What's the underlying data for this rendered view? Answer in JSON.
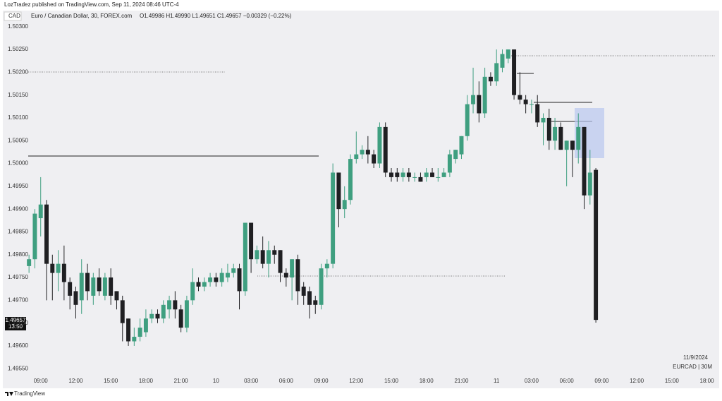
{
  "header": {
    "publisher": "LozTradez published on TradingView.com, Sep 11, 2024 08:46 UTC-4",
    "footer": "TradingView"
  },
  "chart_data": {
    "type": "candlestick",
    "currency": "CAD",
    "title": "Euro / Canadian Dollar, 30, FOREX.com",
    "ohlc_legend": "O1.49986 H1.49990 L1.49651 C1.49657 −0.00329 (−0.22%)",
    "last_time": "13:50",
    "date_label": "11/9/2024",
    "symbol_label": "EURCAD | 30M",
    "up_color": "#3f9f80",
    "down_color": "#1f1f22",
    "ylim": [
      1.49538,
      1.50312
    ],
    "yticks": [
      {
        "value": 1.4955,
        "label": "1.49550"
      },
      {
        "value": 1.496,
        "label": "1.49600"
      },
      {
        "value": 1.4965,
        "label": "1.49650"
      },
      {
        "value": 1.497,
        "label": "1.49700"
      },
      {
        "value": 1.4975,
        "label": "1.49750"
      },
      {
        "value": 1.498,
        "label": "1.49800"
      },
      {
        "value": 1.4985,
        "label": "1.49850"
      },
      {
        "value": 1.499,
        "label": "1.49900"
      },
      {
        "value": 1.4995,
        "label": "1.49950"
      },
      {
        "value": 1.5,
        "label": "1.50000"
      },
      {
        "value": 1.5005,
        "label": "1.50050"
      },
      {
        "value": 1.501,
        "label": "1.50100"
      },
      {
        "value": 1.5015,
        "label": "1.50150"
      },
      {
        "value": 1.502,
        "label": "1.50200"
      },
      {
        "value": 1.5025,
        "label": "1.50250"
      },
      {
        "value": 1.503,
        "label": "1.50300"
      }
    ],
    "grid": false,
    "categories": [
      null,
      null,
      "09:00",
      null,
      null,
      null,
      null,
      null,
      "12:00",
      null,
      null,
      null,
      null,
      null,
      "15:00",
      null,
      null,
      null,
      null,
      null,
      "18:00",
      null,
      null,
      null,
      null,
      null,
      "21:00",
      null,
      null,
      null,
      null,
      null,
      "10",
      null,
      null,
      null,
      null,
      null,
      "03:00",
      null,
      null,
      null,
      null,
      null,
      "06:00",
      null,
      null,
      null,
      null,
      null,
      "09:00",
      null,
      null,
      null,
      null,
      null,
      "12:00",
      null,
      null,
      null,
      null,
      null,
      "15:00",
      null,
      null,
      null,
      null,
      null,
      "18:00",
      null,
      null,
      null,
      null,
      null,
      "21:00",
      null,
      null,
      null,
      null,
      null,
      "11",
      null,
      null,
      null,
      null,
      null,
      "03:00",
      null,
      null,
      null,
      null,
      null,
      "06:00",
      null,
      null,
      null,
      null,
      null,
      "09:00",
      null,
      null,
      null,
      null,
      null,
      "12:00",
      null,
      null,
      null,
      null,
      null,
      "15:00",
      null,
      null,
      null,
      null,
      null,
      "18:00",
      null
    ],
    "open": [
      1.49775,
      1.4979,
      1.4988,
      1.4991,
      1.4978,
      1.4976,
      1.4978,
      1.4974,
      1.4972,
      1.497,
      1.4976,
      1.4971,
      1.4975,
      1.4971,
      1.4975,
      1.4972,
      1.497,
      1.4966,
      1.4961,
      1.4962,
      1.4963,
      1.4966,
      1.4967,
      1.4966,
      1.4968,
      1.497,
      1.4968,
      1.4964,
      1.497,
      1.4974,
      1.4973,
      1.4974,
      1.4975,
      1.4974,
      1.4975,
      1.4976,
      1.4977,
      1.4972,
      1.4987,
      1.4979,
      1.4981,
      1.4978,
      1.4981,
      1.4981,
      1.4976,
      1.4975,
      1.4979,
      1.4973,
      1.4972,
      1.497,
      1.4969,
      1.4977,
      1.4978,
      1.4998,
      1.499,
      1.4992,
      1.5001,
      1.5002,
      1.5003,
      1.5002,
      1.5,
      1.5008,
      1.4998,
      1.4998,
      1.4997,
      1.4998,
      1.4997,
      1.4997,
      1.4997,
      1.4998,
      1.4997,
      1.4997,
      1.4998,
      1.5001,
      1.5002,
      1.5006,
      1.5013,
      1.5015,
      1.5011,
      1.5019,
      1.5018,
      1.5021,
      1.5023,
      1.5025,
      1.5015,
      1.5014,
      1.5013,
      1.5013,
      1.5009,
      1.501,
      1.5005,
      1.5008,
      1.5003,
      1.5005,
      1.5003,
      1.5008,
      1.4993,
      1.49986,
      null,
      null,
      null,
      null,
      null,
      null,
      null,
      null,
      null,
      null,
      null,
      null,
      null,
      null,
      null,
      null,
      null,
      null,
      null,
      null
    ],
    "high": [
      1.498,
      1.499,
      1.4997,
      1.4992,
      1.498,
      1.4981,
      1.4982,
      1.4975,
      1.4973,
      1.4979,
      1.4978,
      1.4976,
      1.4977,
      1.4976,
      1.4977,
      1.4972,
      1.4971,
      1.4966,
      1.4964,
      1.4966,
      1.4968,
      1.4968,
      1.4968,
      1.497,
      1.4971,
      1.4972,
      1.4969,
      1.4971,
      1.4977,
      1.4975,
      1.4975,
      1.4976,
      1.4976,
      1.4977,
      1.4978,
      1.4978,
      1.4978,
      1.4987,
      1.4987,
      1.4982,
      1.4984,
      1.4983,
      1.4982,
      1.4981,
      1.4977,
      1.4979,
      1.498,
      1.4974,
      1.4973,
      1.4971,
      1.4978,
      1.4979,
      1.5,
      1.4998,
      1.4995,
      1.5002,
      1.5007,
      1.5004,
      1.5006,
      1.5003,
      1.5009,
      1.5009,
      1.4999,
      1.4999,
      1.4999,
      1.4999,
      1.4998,
      1.4998,
      1.4999,
      1.4999,
      1.4999,
      1.4999,
      1.5003,
      1.5003,
      1.5006,
      1.5015,
      1.5021,
      1.5018,
      1.5021,
      1.502,
      1.5025,
      1.5025,
      1.5025,
      1.5025,
      1.502,
      1.5015,
      1.5014,
      1.5015,
      1.5011,
      1.5012,
      1.501,
      1.5009,
      1.5005,
      1.5005,
      1.5011,
      1.5008,
      1.5003,
      1.4999,
      null,
      null,
      null,
      null,
      null,
      null,
      null,
      null,
      null,
      null,
      null,
      null,
      null,
      null,
      null,
      null,
      null,
      null,
      null,
      null
    ],
    "low": [
      1.4976,
      1.4977,
      1.4984,
      1.497,
      1.497,
      1.4972,
      1.497,
      1.4968,
      1.4966,
      1.4967,
      1.497,
      1.4969,
      1.4971,
      1.497,
      1.4969,
      1.4968,
      1.4961,
      1.496,
      1.496,
      1.4961,
      1.4962,
      1.4965,
      1.4965,
      1.4965,
      1.4966,
      1.4966,
      1.4963,
      1.4963,
      1.4969,
      1.4972,
      1.4972,
      1.4973,
      1.4973,
      1.4973,
      1.4974,
      1.4975,
      1.4968,
      1.4971,
      1.4976,
      1.4978,
      1.4977,
      1.4975,
      1.4978,
      1.4974,
      1.4973,
      1.497,
      1.4969,
      1.4969,
      1.4966,
      1.4967,
      1.4968,
      1.4975,
      1.4977,
      1.4986,
      1.4988,
      1.4991,
      1.5,
      1.5001,
      1.5,
      1.4999,
      1.4999,
      1.4997,
      1.4996,
      1.4996,
      1.4996,
      1.4996,
      1.4996,
      1.4996,
      1.4996,
      1.4997,
      1.4996,
      1.4997,
      1.4997,
      1.5,
      1.5001,
      1.5005,
      1.5011,
      1.5009,
      1.501,
      1.5017,
      1.5017,
      1.502,
      1.5022,
      1.5014,
      1.5013,
      1.5011,
      1.5011,
      1.5008,
      1.5004,
      1.5003,
      1.5003,
      1.5003,
      1.4995,
      1.4997,
      1.5,
      1.499,
      1.4991,
      1.49651,
      null,
      null,
      null,
      null,
      null,
      null,
      null,
      null,
      null,
      null,
      null,
      null,
      null,
      null,
      null,
      null,
      null,
      null,
      null,
      null
    ],
    "close": [
      1.4979,
      1.4989,
      1.4991,
      1.4978,
      1.4976,
      1.4978,
      1.4974,
      1.4971,
      1.4969,
      1.4976,
      1.4972,
      1.4975,
      1.4972,
      1.4975,
      1.4971,
      1.497,
      1.4965,
      1.4961,
      1.4962,
      1.4964,
      1.4966,
      1.4967,
      1.4966,
      1.4969,
      1.497,
      1.4968,
      1.4964,
      1.497,
      1.4974,
      1.4973,
      1.4974,
      1.4975,
      1.4974,
      1.4976,
      1.4976,
      1.4977,
      1.4972,
      1.4987,
      1.4979,
      1.4981,
      1.4978,
      1.4981,
      1.498,
      1.4976,
      1.4975,
      1.4979,
      1.4972,
      1.4971,
      1.4969,
      1.4969,
      1.4977,
      1.4978,
      1.4998,
      1.499,
      1.4992,
      1.5001,
      1.5002,
      1.5003,
      1.5002,
      1.5,
      1.5008,
      1.4998,
      1.4997,
      1.4997,
      1.4998,
      1.4997,
      1.4997,
      1.4996,
      1.4998,
      1.4997,
      1.4997,
      1.4998,
      1.5002,
      1.5003,
      1.5006,
      1.5013,
      1.5015,
      1.5011,
      1.5019,
      1.5018,
      1.5022,
      1.5024,
      1.5025,
      1.5015,
      1.5014,
      1.5013,
      1.5013,
      1.5009,
      1.501,
      1.5005,
      1.5008,
      1.5003,
      1.5005,
      1.5003,
      1.5008,
      1.4993,
      1.4998,
      1.49657,
      null,
      null,
      null,
      null,
      null,
      null,
      null,
      null,
      null,
      null,
      null,
      null,
      null,
      null,
      null,
      null,
      null,
      null,
      null,
      null
    ]
  }
}
